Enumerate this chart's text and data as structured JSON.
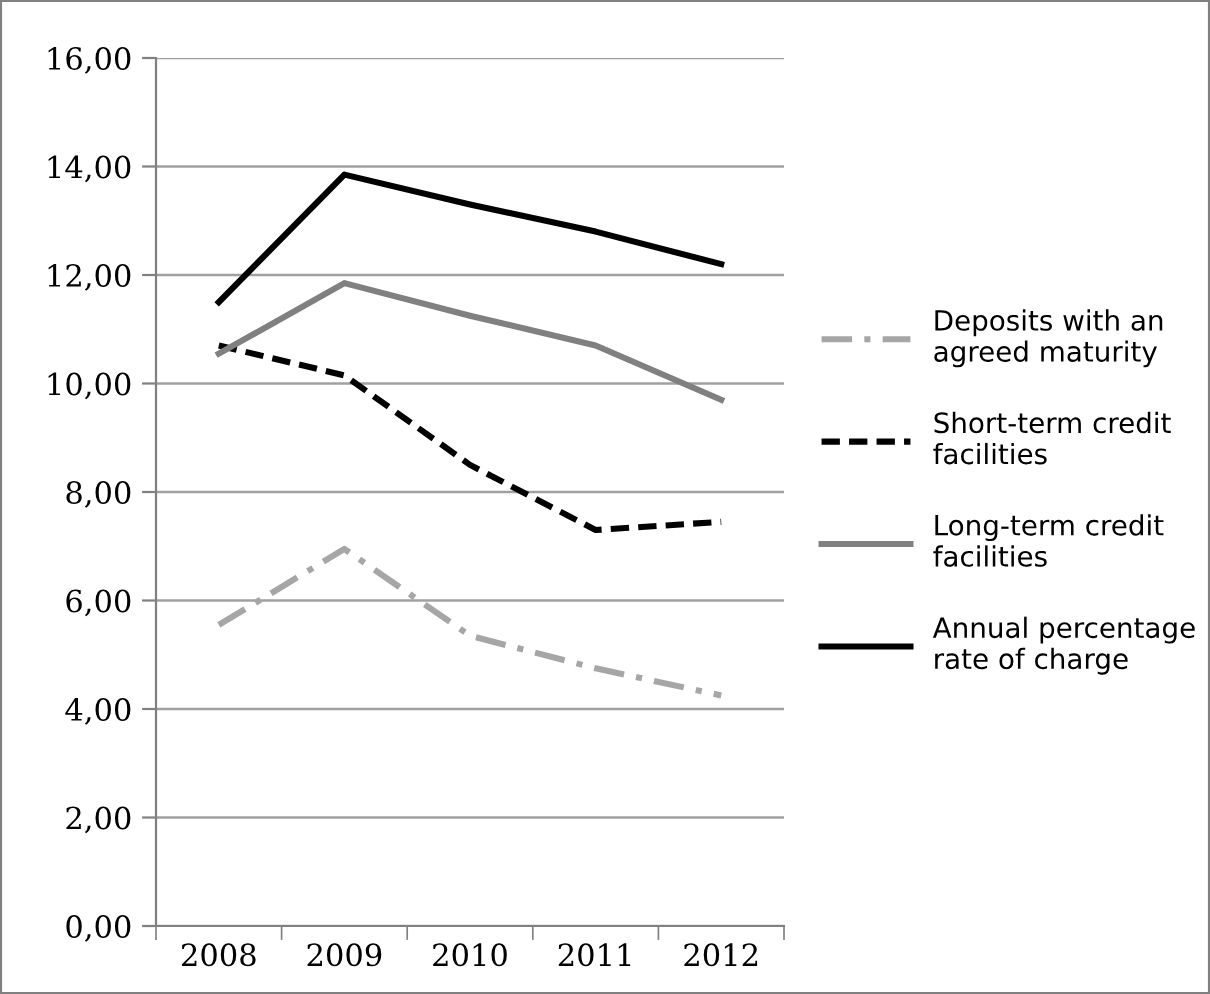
{
  "chart_data": {
    "type": "line",
    "categories": [
      "2008",
      "2009",
      "2010",
      "2011",
      "2012"
    ],
    "series": [
      {
        "name": "Deposits with an agreed maturity",
        "color": "#a6a6a6",
        "line_style": "dashdot",
        "values": [
          5.55,
          6.95,
          5.35,
          4.75,
          4.25
        ]
      },
      {
        "name": "Short-term credit facilities",
        "color": "#000000",
        "line_style": "dashed",
        "values": [
          10.7,
          10.15,
          8.5,
          7.3,
          7.45
        ]
      },
      {
        "name": "Long-term credit facilities",
        "color": "#808080",
        "line_style": "solid",
        "values": [
          10.55,
          11.85,
          11.25,
          10.7,
          9.7
        ]
      },
      {
        "name": "Annual percentage rate of charge",
        "color": "#000000",
        "line_style": "solid",
        "values": [
          11.5,
          13.85,
          13.3,
          12.8,
          12.2
        ]
      }
    ],
    "ylim": [
      0,
      16
    ],
    "yticks": [
      {
        "value": 0,
        "label": "0,00"
      },
      {
        "value": 2,
        "label": "2,00"
      },
      {
        "value": 4,
        "label": "4,00"
      },
      {
        "value": 6,
        "label": "6,00"
      },
      {
        "value": 8,
        "label": "8,00"
      },
      {
        "value": 10,
        "label": "10,00"
      },
      {
        "value": 12,
        "label": "12,00"
      },
      {
        "value": 14,
        "label": "14,00"
      },
      {
        "value": 16,
        "label": "16,00"
      }
    ],
    "grid": "y",
    "legend": "right",
    "marker": "none"
  }
}
